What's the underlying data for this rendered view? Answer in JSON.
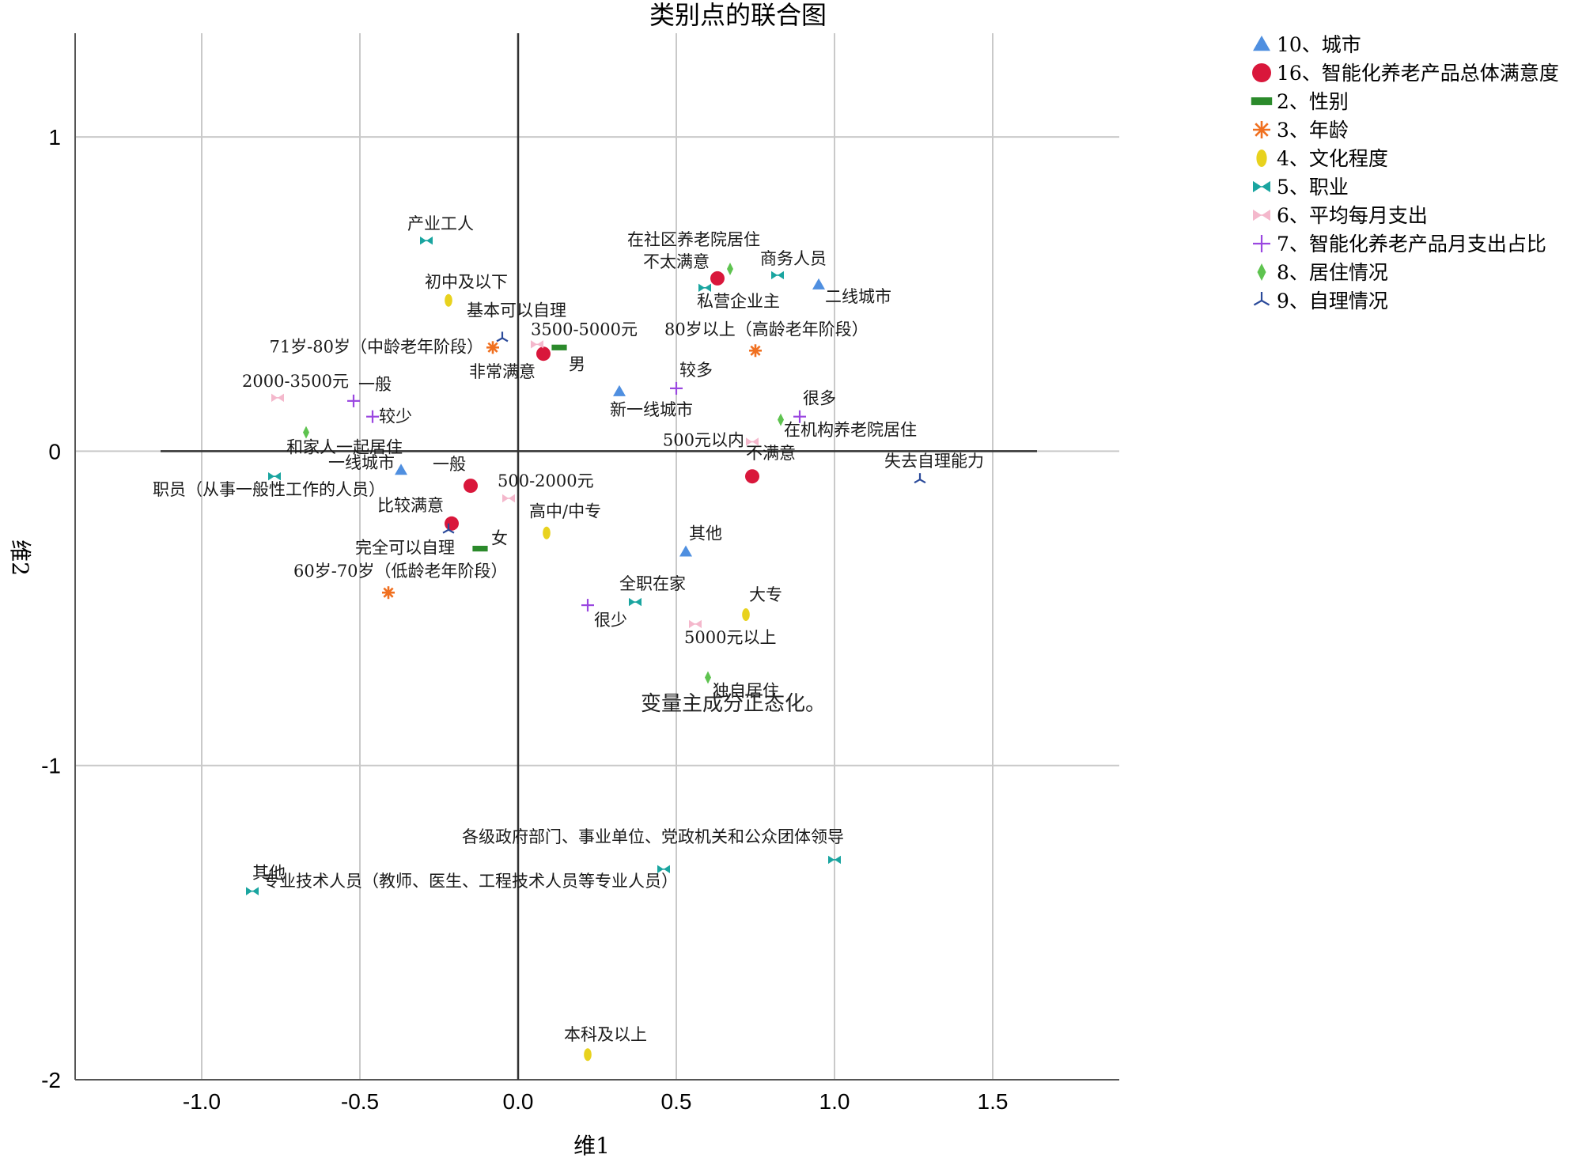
{
  "chart_data": {
    "type": "scatter",
    "title": "类别点的联合图",
    "xlabel": "维1",
    "ylabel": "维2",
    "xlim": [
      -1.4,
      1.9
    ],
    "ylim": [
      -2.0,
      1.33
    ],
    "xticks": [
      -1.0,
      -0.5,
      0.0,
      0.5,
      1.0,
      1.5
    ],
    "xtick_labels": [
      "-1.0",
      "-0.5",
      "0.0",
      "0.5",
      "1.0",
      "1.5"
    ],
    "yticks": [
      1,
      0,
      -1,
      -2
    ],
    "ytick_labels": [
      "1",
      "0",
      "-1",
      "-2"
    ],
    "grid": true,
    "legend_position": "right",
    "note": "变量主成分正态化。",
    "series": [
      {
        "name": "10、城市",
        "marker": "triangle",
        "color": "#4f8fe0",
        "points": [
          {
            "label": "二线城市",
            "x": 0.95,
            "y": 0.53
          },
          {
            "label": "新一线城市",
            "x": 0.32,
            "y": 0.19
          },
          {
            "label": "一线城市",
            "x": -0.37,
            "y": -0.06
          },
          {
            "label": "其他",
            "x": 0.53,
            "y": -0.32
          }
        ]
      },
      {
        "name": "16、智能化养老产品总体满意度",
        "marker": "circle",
        "color": "#d9173b",
        "points": [
          {
            "label": "不太满意",
            "x": 0.63,
            "y": 0.55
          },
          {
            "label": "非常满意",
            "x": 0.08,
            "y": 0.31
          },
          {
            "label": "一般",
            "x": -0.15,
            "y": -0.11
          },
          {
            "label": "比较满意",
            "x": -0.21,
            "y": -0.23
          },
          {
            "label": "不满意",
            "x": 0.74,
            "y": -0.08
          }
        ]
      },
      {
        "name": "2、性别",
        "marker": "rect",
        "color": "#2b8a2b",
        "points": [
          {
            "label": "男",
            "x": 0.13,
            "y": 0.33
          },
          {
            "label": "女",
            "x": -0.12,
            "y": -0.31
          }
        ]
      },
      {
        "name": "3、年龄",
        "marker": "star",
        "color": "#f07020",
        "points": [
          {
            "label": "71岁-80岁（中龄老年阶段）",
            "x": -0.08,
            "y": 0.33
          },
          {
            "label": "80岁以上（高龄老年阶段）",
            "x": 0.75,
            "y": 0.32
          },
          {
            "label": "60岁-70岁（低龄老年阶段）",
            "x": -0.41,
            "y": -0.45
          }
        ]
      },
      {
        "name": "4、文化程度",
        "marker": "ellipse",
        "color": "#e8d21e",
        "points": [
          {
            "label": "初中及以下",
            "x": -0.22,
            "y": 0.48
          },
          {
            "label": "高中/中专",
            "x": 0.09,
            "y": -0.26
          },
          {
            "label": "大专",
            "x": 0.72,
            "y": -0.52
          },
          {
            "label": "本科及以上",
            "x": 0.22,
            "y": -1.92
          }
        ]
      },
      {
        "name": "5、职业",
        "marker": "bowtie",
        "color": "#1aa5a0",
        "points": [
          {
            "label": "产业工人",
            "x": -0.29,
            "y": 0.67
          },
          {
            "label": "私营企业主",
            "x": 0.59,
            "y": 0.52
          },
          {
            "label": "商务人员",
            "x": 0.82,
            "y": 0.56
          },
          {
            "label": "职员（从事一般性工作的人员）",
            "x": -0.77,
            "y": -0.08
          },
          {
            "label": "全职在家",
            "x": 0.37,
            "y": -0.48
          },
          {
            "label": "各级政府部门、事业单位、党政机关和公众团体领导",
            "x": 1.0,
            "y": -1.3
          },
          {
            "label": "专业技术人员（教师、医生、工程技术人员等专业人员）",
            "x": 0.46,
            "y": -1.33
          },
          {
            "label": "其他",
            "x": -0.84,
            "y": -1.4
          }
        ]
      },
      {
        "name": "6、平均每月支出",
        "marker": "bowtie",
        "color": "#f4b8cc",
        "points": [
          {
            "label": "3500-5000元",
            "x": 0.06,
            "y": 0.34
          },
          {
            "label": "2000-3500元",
            "x": -0.76,
            "y": 0.17
          },
          {
            "label": "500元以内",
            "x": 0.74,
            "y": 0.03
          },
          {
            "label": "500-2000元",
            "x": -0.03,
            "y": -0.15
          },
          {
            "label": "5000元以上",
            "x": 0.56,
            "y": -0.55
          }
        ]
      },
      {
        "name": "7、智能化养老产品月支出占比",
        "marker": "plus",
        "color": "#9a47e0",
        "points": [
          {
            "label": "较多",
            "x": 0.5,
            "y": 0.2
          },
          {
            "label": "一般",
            "x": -0.52,
            "y": 0.16
          },
          {
            "label": "较少",
            "x": -0.46,
            "y": 0.11
          },
          {
            "label": "很多",
            "x": 0.89,
            "y": 0.11
          },
          {
            "label": "很少",
            "x": 0.22,
            "y": -0.49
          }
        ]
      },
      {
        "name": "8、居住情况",
        "marker": "diamond",
        "color": "#5ec34f",
        "points": [
          {
            "label": "在社区养老院居住",
            "x": 0.67,
            "y": 0.58
          },
          {
            "label": "在机构养老院居住",
            "x": 0.83,
            "y": 0.1
          },
          {
            "label": "和家人一起居住",
            "x": -0.67,
            "y": 0.06
          },
          {
            "label": "独自居住",
            "x": 0.6,
            "y": -0.72
          }
        ]
      },
      {
        "name": "9、自理情况",
        "marker": "tripod",
        "color": "#2b4a9a",
        "points": [
          {
            "label": "基本可以自理",
            "x": -0.05,
            "y": 0.36
          },
          {
            "label": "失去自理能力",
            "x": 1.27,
            "y": -0.09
          },
          {
            "label": "完全可以自理",
            "x": -0.22,
            "y": -0.25
          }
        ]
      }
    ]
  }
}
